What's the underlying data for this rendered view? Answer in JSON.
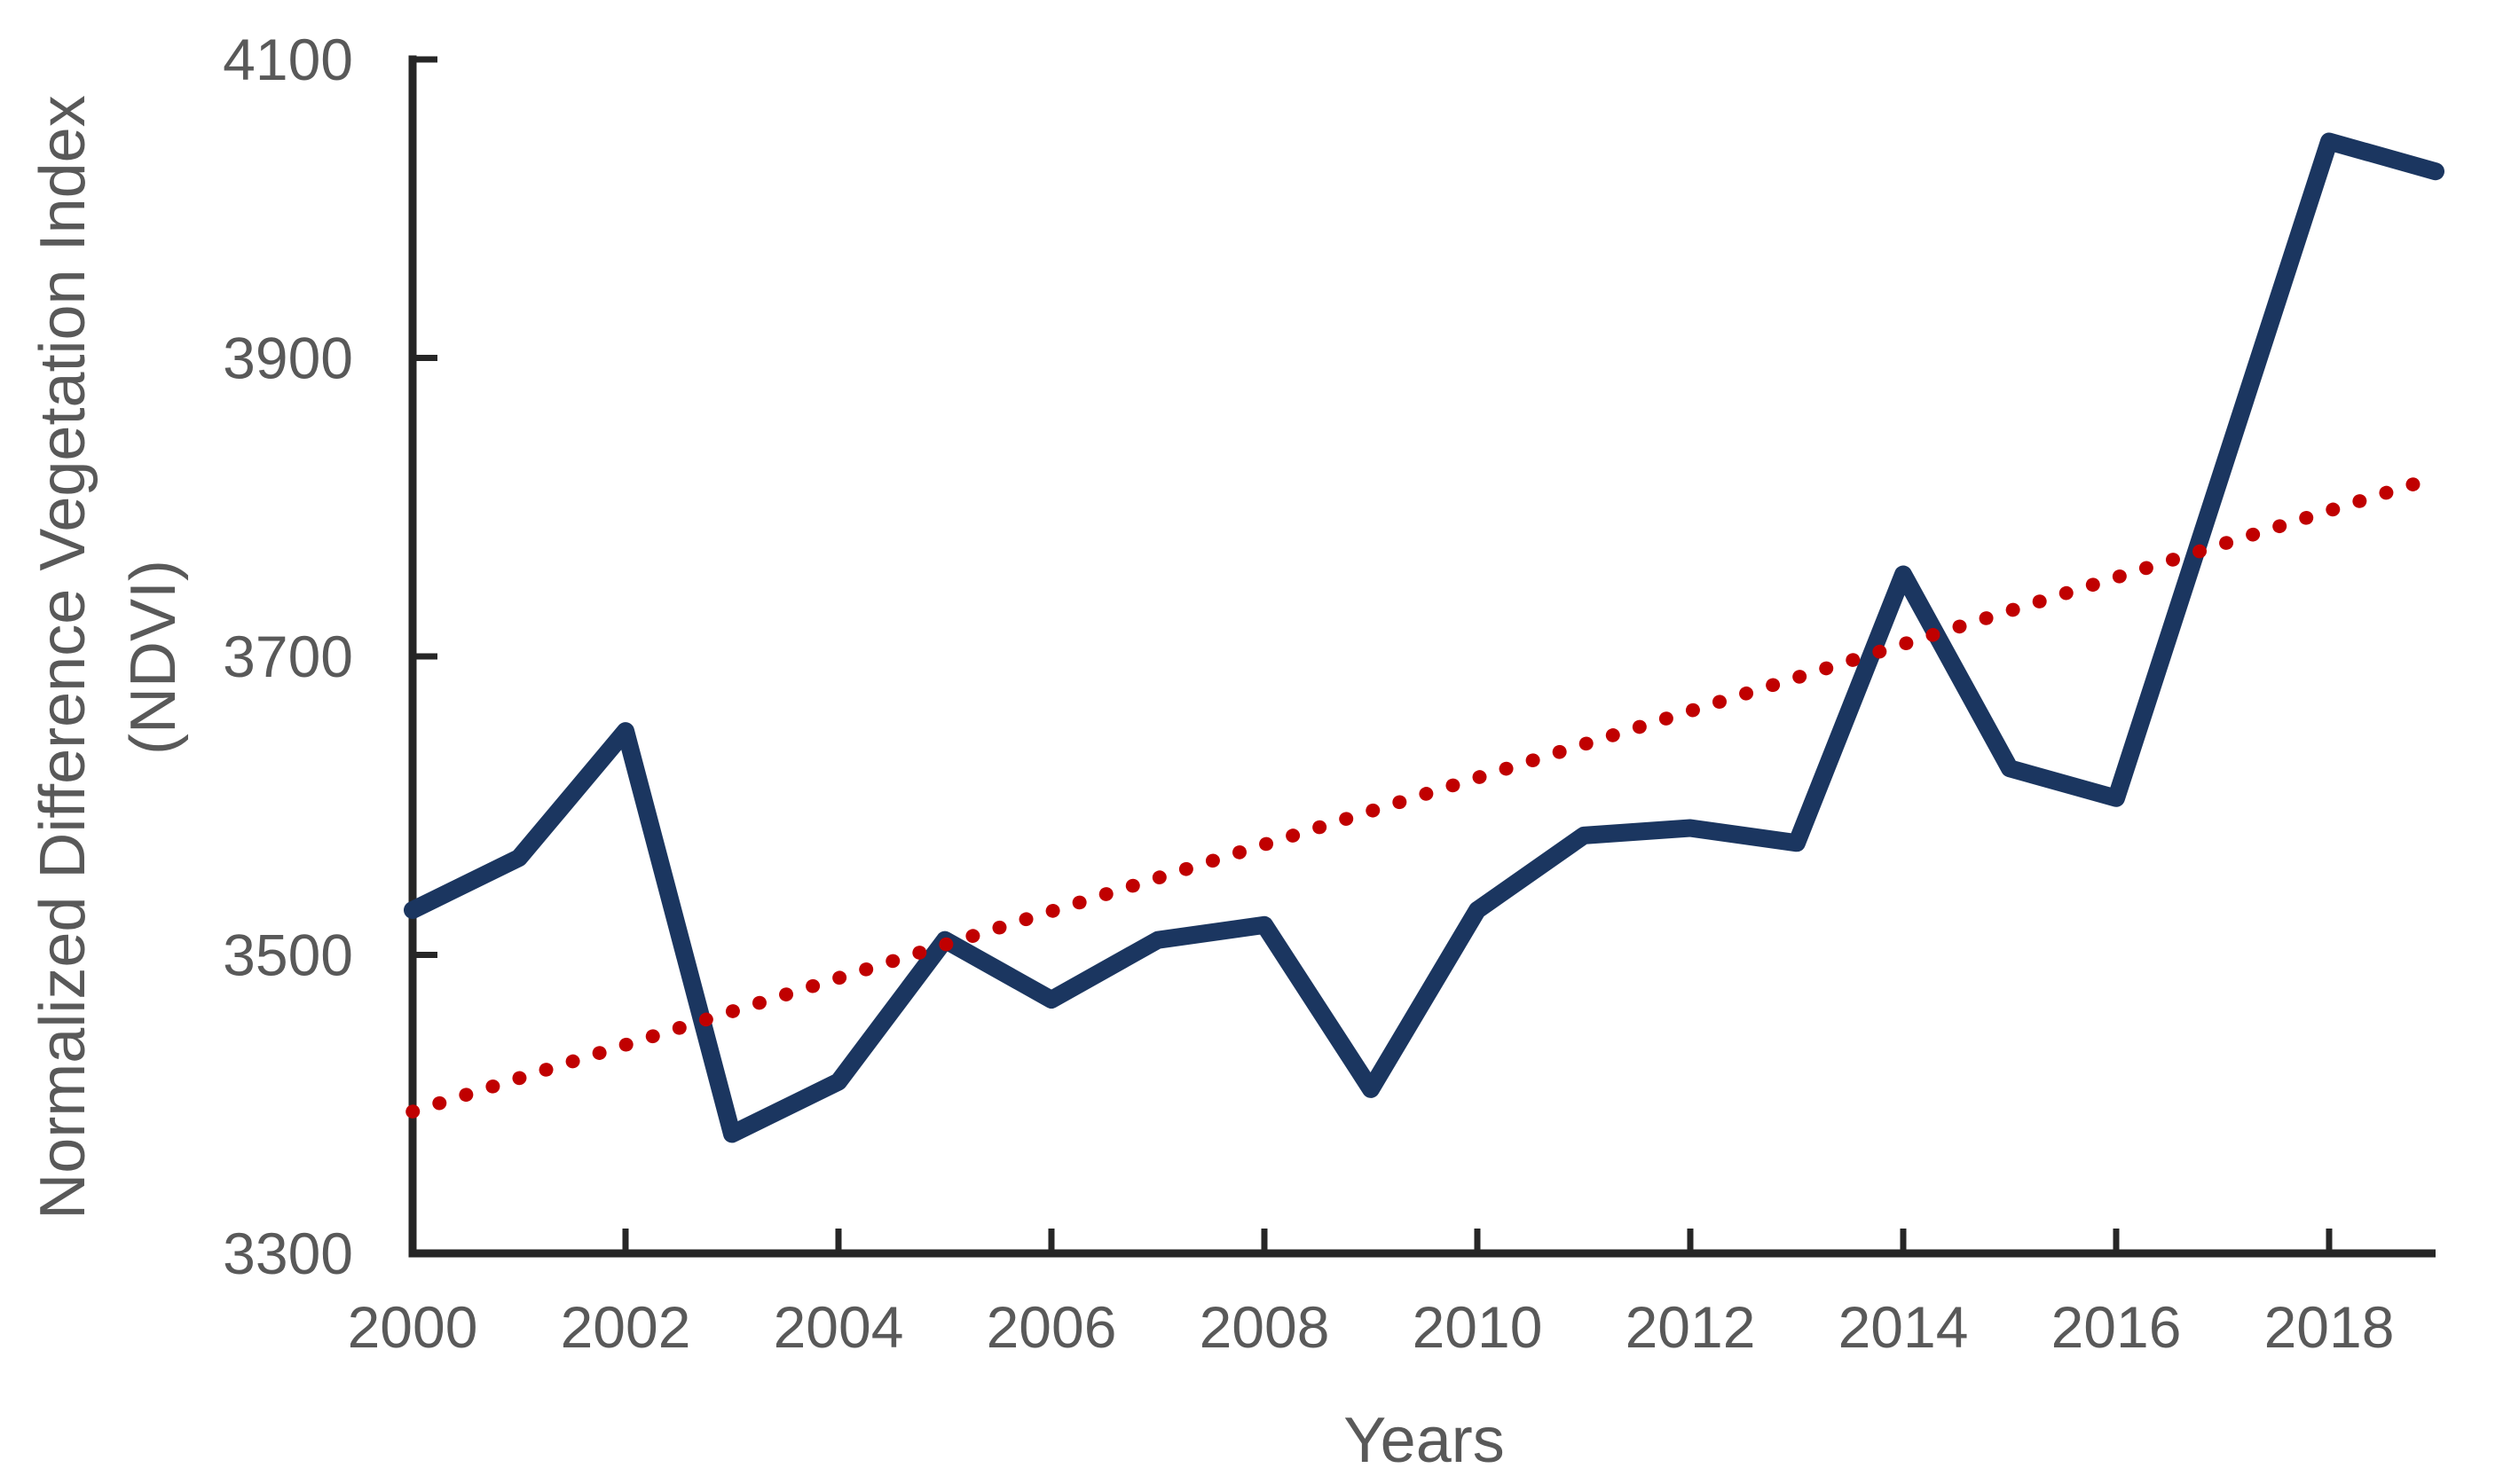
{
  "chart_data": {
    "type": "line",
    "title": "",
    "xlabel": "Years",
    "ylabel": "Normalized Difference Vegetation Index (NDVI)",
    "ylabel_lines": [
      "Normalized Difference Vegetation Index",
      "(NDVI)"
    ],
    "x": [
      2000,
      2001,
      2002,
      2003,
      2004,
      2005,
      2006,
      2007,
      2008,
      2009,
      2010,
      2011,
      2012,
      2013,
      2014,
      2015,
      2016,
      2017,
      2018,
      2019
    ],
    "series": [
      {
        "name": "NDVI",
        "type": "line",
        "color": "#1b3660",
        "values": [
          3530,
          3565,
          3650,
          3380,
          3415,
          3510,
          3470,
          3510,
          3520,
          3410,
          3530,
          3580,
          3585,
          3575,
          3755,
          3625,
          3605,
          3825,
          4045,
          4025
        ]
      },
      {
        "name": "Linear trendline",
        "type": "trendline",
        "style": "dotted",
        "color": "#c00000",
        "x_start": 2000,
        "y_start": 3395,
        "x_end": 2019,
        "y_end": 3820
      }
    ],
    "xlim": [
      2000,
      2019
    ],
    "ylim": [
      3300,
      4100
    ],
    "yticks": [
      3300,
      3500,
      3700,
      3900,
      4100
    ],
    "ytick_labels": [
      "3300",
      "3500",
      "3700",
      "3900",
      "4100"
    ],
    "xticks": [
      2000,
      2002,
      2004,
      2006,
      2008,
      2010,
      2012,
      2014,
      2016,
      2018
    ],
    "xtick_labels": [
      "2000",
      "2002",
      "2004",
      "2006",
      "2008",
      "2010",
      "2012",
      "2014",
      "2016",
      "2018"
    ],
    "grid": false,
    "legend_position": "none",
    "colors": {
      "background": "#ffffff",
      "axis_line": "#262626",
      "tick_label": "#595959",
      "axis_title": "#595959",
      "ndvi_series": "#1b3660",
      "trendline": "#c00000"
    }
  }
}
